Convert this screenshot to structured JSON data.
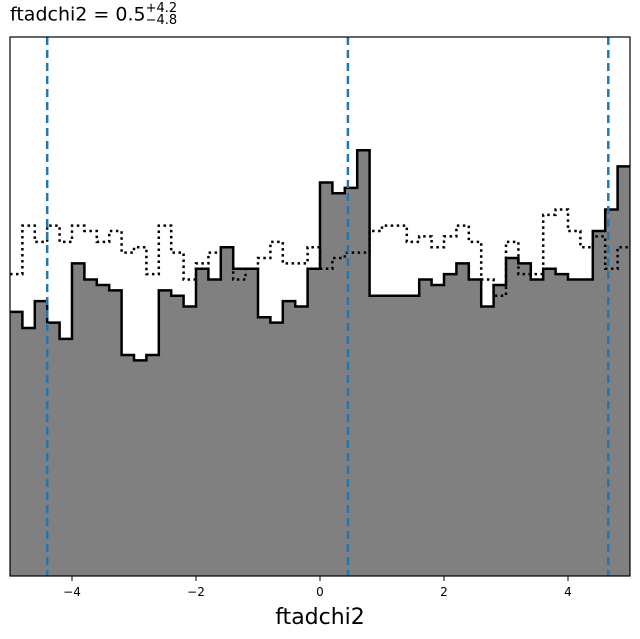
{
  "chart_data": {
    "type": "histogram",
    "title": {
      "name": "ftadchi2",
      "equals": "=",
      "value": "0.5",
      "plus": "+4.2",
      "minus": "−4.8"
    },
    "xlabel": "ftadchi2",
    "ylabel": "",
    "xlim": [
      -5.0,
      5.0
    ],
    "ylim": [
      0,
      1.0
    ],
    "x_ticks": [
      -4,
      -2,
      0,
      2,
      4
    ],
    "x_tick_labels": [
      "−4",
      "−2",
      "0",
      "2",
      "4"
    ],
    "y_ticks_shown": false,
    "bins": {
      "start": -5.0,
      "width": 0.2,
      "count": 50
    },
    "series": [
      {
        "style": "filled",
        "fill_color": "#808080",
        "edge_color": "#000000",
        "values": [
          0.49,
          0.46,
          0.51,
          0.47,
          0.44,
          0.58,
          0.55,
          0.54,
          0.53,
          0.41,
          0.4,
          0.41,
          0.53,
          0.52,
          0.5,
          0.57,
          0.55,
          0.61,
          0.57,
          0.57,
          0.48,
          0.47,
          0.51,
          0.5,
          0.57,
          0.73,
          0.71,
          0.72,
          0.79,
          0.52,
          0.52,
          0.52,
          0.52,
          0.55,
          0.54,
          0.56,
          0.58,
          0.55,
          0.5,
          0.54,
          0.59,
          0.58,
          0.55,
          0.57,
          0.56,
          0.55,
          0.55,
          0.64,
          0.68,
          0.76
        ]
      },
      {
        "style": "dotted-step",
        "edge_color": "#000000",
        "values": [
          0.56,
          0.65,
          0.62,
          0.65,
          0.62,
          0.65,
          0.64,
          0.62,
          0.64,
          0.6,
          0.61,
          0.56,
          0.65,
          0.6,
          0.55,
          0.58,
          0.6,
          0.61,
          0.55,
          0.57,
          0.59,
          0.62,
          0.58,
          0.58,
          0.61,
          0.57,
          0.59,
          0.6,
          0.6,
          0.64,
          0.65,
          0.65,
          0.62,
          0.63,
          0.61,
          0.63,
          0.65,
          0.62,
          0.55,
          0.52,
          0.62,
          0.56,
          0.56,
          0.67,
          0.68,
          0.64,
          0.61,
          0.63,
          0.57,
          0.61
        ]
      }
    ],
    "vertical_lines": [
      {
        "x": -4.4,
        "style": "dashed",
        "color": "#1f77b4"
      },
      {
        "x": 0.45,
        "style": "dashed",
        "color": "#1f77b4"
      },
      {
        "x": 4.65,
        "style": "dashed",
        "color": "#1f77b4"
      }
    ],
    "grid": false,
    "legend": "none"
  }
}
